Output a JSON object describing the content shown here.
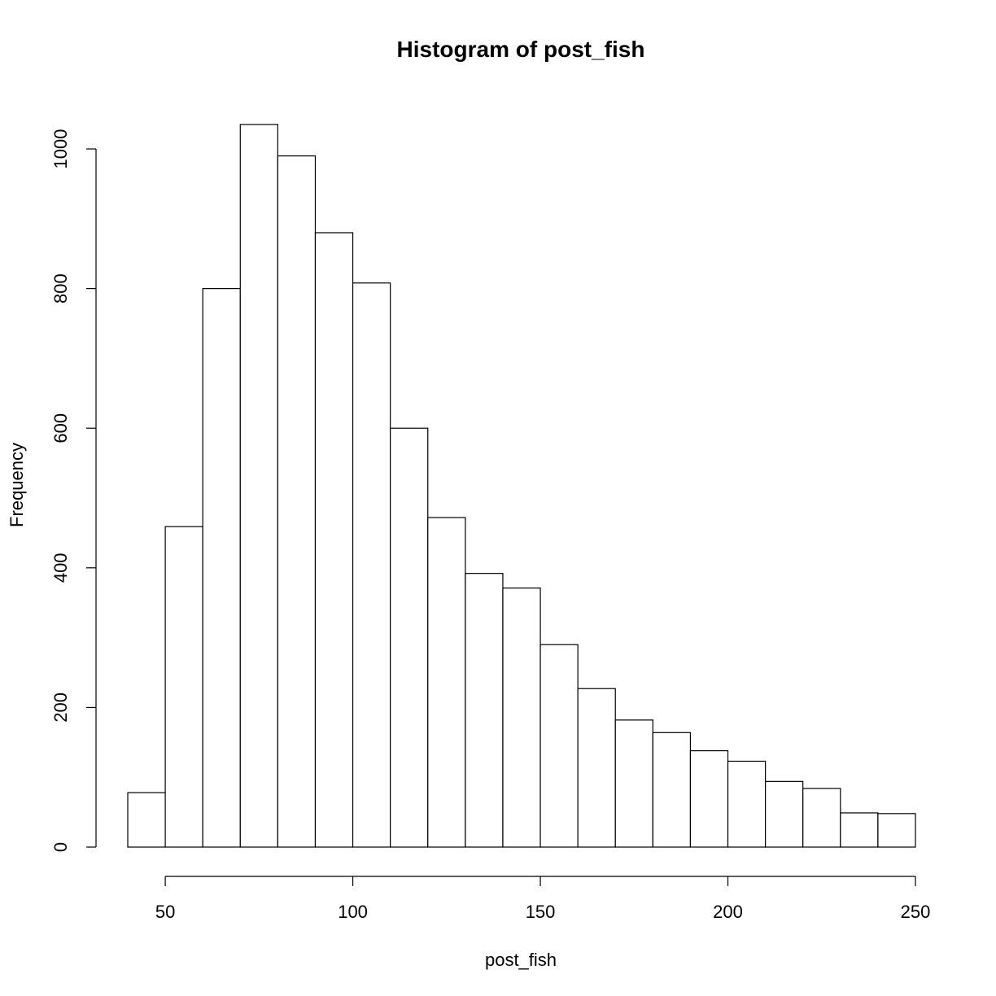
{
  "chart_data": {
    "type": "bar",
    "title": "Histogram of post_fish",
    "xlabel": "post_fish",
    "ylabel": "Frequency",
    "bins": [
      {
        "start": 40,
        "end": 50,
        "count": 78
      },
      {
        "start": 50,
        "end": 60,
        "count": 459
      },
      {
        "start": 60,
        "end": 70,
        "count": 800
      },
      {
        "start": 70,
        "end": 80,
        "count": 1035
      },
      {
        "start": 80,
        "end": 90,
        "count": 990
      },
      {
        "start": 90,
        "end": 100,
        "count": 880
      },
      {
        "start": 100,
        "end": 110,
        "count": 808
      },
      {
        "start": 110,
        "end": 120,
        "count": 600
      },
      {
        "start": 120,
        "end": 130,
        "count": 472
      },
      {
        "start": 130,
        "end": 140,
        "count": 392
      },
      {
        "start": 140,
        "end": 150,
        "count": 371
      },
      {
        "start": 150,
        "end": 160,
        "count": 290
      },
      {
        "start": 160,
        "end": 170,
        "count": 227
      },
      {
        "start": 170,
        "end": 180,
        "count": 182
      },
      {
        "start": 180,
        "end": 190,
        "count": 164
      },
      {
        "start": 190,
        "end": 200,
        "count": 138
      },
      {
        "start": 200,
        "end": 210,
        "count": 123
      },
      {
        "start": 210,
        "end": 220,
        "count": 94
      },
      {
        "start": 220,
        "end": 230,
        "count": 84
      },
      {
        "start": 230,
        "end": 240,
        "count": 49
      },
      {
        "start": 240,
        "end": 250,
        "count": 48
      }
    ],
    "xticks": [
      50,
      100,
      150,
      200,
      250
    ],
    "yticks": [
      0,
      200,
      400,
      600,
      800,
      1000
    ],
    "xlim": [
      40,
      250
    ],
    "ylim": [
      0,
      1035
    ],
    "grid": false,
    "legend": "none"
  }
}
